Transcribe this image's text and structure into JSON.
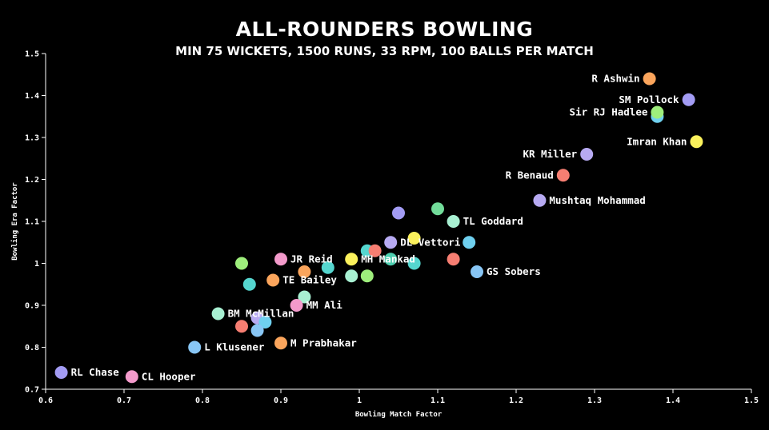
{
  "chart_data": {
    "type": "scatter",
    "title": "ALL-ROUNDERS BOWLING",
    "subtitle": "MIN 75 WICKETS, 1500 RUNS, 33 RPM, 100 BALLS PER MATCH",
    "xlabel": "Bowling Match Factor",
    "ylabel": "Bowling Era Factor",
    "xlim": [
      0.6,
      1.5
    ],
    "ylim": [
      0.7,
      1.5
    ],
    "x_ticks": [
      "0.6",
      "0.7",
      "0.8",
      "0.9",
      "1",
      "1.1",
      "1.2",
      "1.3",
      "1.4",
      "1.5"
    ],
    "y_ticks": [
      "0.7",
      "0.8",
      "0.9",
      "1",
      "1.1",
      "1.2",
      "1.3",
      "1.4",
      "1.5"
    ],
    "grid": false,
    "points": [
      {
        "x": 1.37,
        "y": 1.44,
        "label": "R Ashwin",
        "color": "#fba55c"
      },
      {
        "x": 1.42,
        "y": 1.39,
        "label": "SM Pollock",
        "color": "#a39cf4"
      },
      {
        "x": 1.38,
        "y": 1.35,
        "label": "",
        "color": "#6fd0ef"
      },
      {
        "x": 1.38,
        "y": 1.36,
        "label": "Sir RJ Hadlee",
        "color": "#9eee7c"
      },
      {
        "x": 1.43,
        "y": 1.29,
        "label": "Imran Khan",
        "color": "#fbf15c"
      },
      {
        "x": 1.29,
        "y": 1.26,
        "label": "KR Miller",
        "color": "#b7aaf2"
      },
      {
        "x": 1.26,
        "y": 1.21,
        "label": "R Benaud",
        "color": "#f67e72"
      },
      {
        "x": 1.23,
        "y": 1.15,
        "label": "Mushtaq Mohammad",
        "color": "#b7aaf2"
      },
      {
        "x": 1.1,
        "y": 1.13,
        "label": "",
        "color": "#72dc9a"
      },
      {
        "x": 1.05,
        "y": 1.12,
        "label": "",
        "color": "#a39cf4"
      },
      {
        "x": 1.12,
        "y": 1.1,
        "label": "TL Goddard",
        "color": "#a8f0d2"
      },
      {
        "x": 1.07,
        "y": 1.06,
        "label": "",
        "color": "#fbf15c"
      },
      {
        "x": 1.04,
        "y": 1.05,
        "label": "DL Vettori",
        "color": "#b7aaf2"
      },
      {
        "x": 1.14,
        "y": 1.05,
        "label": "",
        "color": "#6fd0ef"
      },
      {
        "x": 1.01,
        "y": 1.03,
        "label": "",
        "color": "#55d6cf"
      },
      {
        "x": 1.02,
        "y": 1.03,
        "label": "",
        "color": "#f67e72"
      },
      {
        "x": 1.04,
        "y": 1.01,
        "label": "",
        "color": "#4ecfb0"
      },
      {
        "x": 0.99,
        "y": 1.01,
        "label": "MH Mankad",
        "color": "#fbf15c"
      },
      {
        "x": 1.07,
        "y": 1.0,
        "label": "",
        "color": "#55d6cf"
      },
      {
        "x": 1.12,
        "y": 1.01,
        "label": "",
        "color": "#f67e72"
      },
      {
        "x": 1.15,
        "y": 0.98,
        "label": "GS Sobers",
        "color": "#88c6f5"
      },
      {
        "x": 0.9,
        "y": 1.01,
        "label": "JR Reid",
        "color": "#f39acb"
      },
      {
        "x": 0.85,
        "y": 1.0,
        "label": "",
        "color": "#9eee7c"
      },
      {
        "x": 0.96,
        "y": 0.99,
        "label": "",
        "color": "#55d6cf"
      },
      {
        "x": 0.93,
        "y": 0.98,
        "label": "",
        "color": "#fba55c"
      },
      {
        "x": 0.99,
        "y": 0.97,
        "label": "",
        "color": "#a8f0d2"
      },
      {
        "x": 1.01,
        "y": 0.97,
        "label": "",
        "color": "#9eee7c"
      },
      {
        "x": 0.89,
        "y": 0.96,
        "label": "TE Bailey",
        "color": "#fba55c"
      },
      {
        "x": 0.86,
        "y": 0.95,
        "label": "",
        "color": "#55d6cf"
      },
      {
        "x": 0.93,
        "y": 0.92,
        "label": "",
        "color": "#a8f0d2"
      },
      {
        "x": 0.92,
        "y": 0.9,
        "label": "MM Ali",
        "color": "#f39acb"
      },
      {
        "x": 0.82,
        "y": 0.88,
        "label": "BM McMillan",
        "color": "#a8f0d2"
      },
      {
        "x": 0.87,
        "y": 0.87,
        "label": "",
        "color": "#b7aaf2"
      },
      {
        "x": 0.88,
        "y": 0.86,
        "label": "",
        "color": "#6fd0ef"
      },
      {
        "x": 0.85,
        "y": 0.85,
        "label": "",
        "color": "#f67e72"
      },
      {
        "x": 0.87,
        "y": 0.84,
        "label": "",
        "color": "#88c6f5"
      },
      {
        "x": 0.9,
        "y": 0.81,
        "label": "M Prabhakar",
        "color": "#fba55c"
      },
      {
        "x": 0.79,
        "y": 0.8,
        "label": "L Klusener",
        "color": "#88c6f5"
      },
      {
        "x": 0.62,
        "y": 0.74,
        "label": "RL Chase",
        "color": "#a39cf4"
      },
      {
        "x": 0.71,
        "y": 0.73,
        "label": "CL Hooper",
        "color": "#f39acb"
      }
    ]
  }
}
